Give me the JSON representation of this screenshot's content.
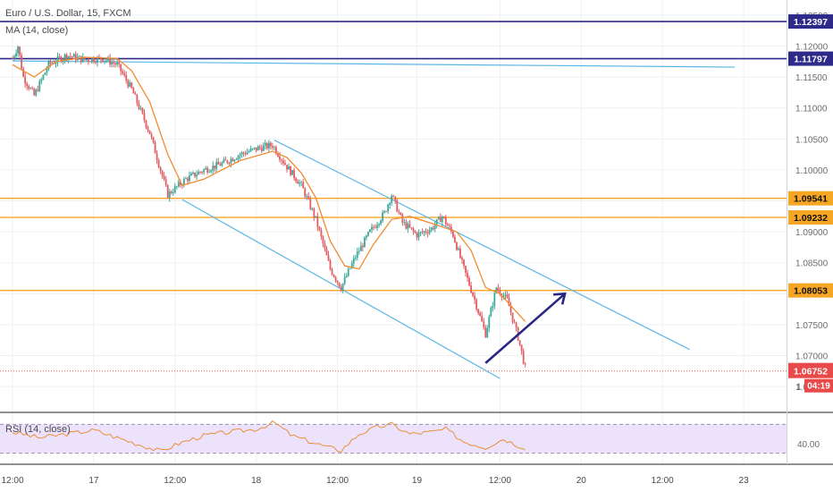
{
  "header": {
    "symbol_title": "Euro / U.S. Dollar, 15, FXCM",
    "ma_legend": "MA (14, close)",
    "rsi_legend": "RSI (14, close)"
  },
  "colors": {
    "candle_up": "#3aa89a",
    "candle_down": "#e05d63",
    "ma": "#f28b30",
    "channel": "#5bb6e3",
    "orange_level": "#f5a623",
    "navy_level": "#2d2a8a",
    "arrow": "#2a2785",
    "rsi_line": "#e8903a",
    "rsi_band": "#ede2fb",
    "last_price": "#e84a4a"
  },
  "chart_data": [
    {
      "type": "candlestick",
      "title": "Euro / U.S. Dollar, 15, FXCM",
      "indicator": "MA (14, close)",
      "ylim": [
        1.0645,
        1.1262
      ],
      "y_ticks": [
        "1.12500",
        "1.12000",
        "1.11500",
        "1.11000",
        "1.10500",
        "1.10000",
        "1.09500",
        "1.09000",
        "1.08500",
        "1.08000",
        "1.07500",
        "1.07000",
        "1.06500"
      ],
      "x_ticks": [
        "12:00",
        "17",
        "12:00",
        "18",
        "12:00",
        "19",
        "12:00",
        "20",
        "12:00",
        "23"
      ],
      "price_path": [
        {
          "t": 0,
          "p": 1.118
        },
        {
          "t": 3,
          "p": 1.12
        },
        {
          "t": 6,
          "p": 1.115
        },
        {
          "t": 12,
          "p": 1.112
        },
        {
          "t": 20,
          "p": 1.117
        },
        {
          "t": 30,
          "p": 1.1185
        },
        {
          "t": 40,
          "p": 1.1178
        },
        {
          "t": 50,
          "p": 1.118
        },
        {
          "t": 58,
          "p": 1.117
        },
        {
          "t": 66,
          "p": 1.113
        },
        {
          "t": 76,
          "p": 1.106
        },
        {
          "t": 86,
          "p": 1.096
        },
        {
          "t": 96,
          "p": 1.0985
        },
        {
          "t": 106,
          "p": 1.1
        },
        {
          "t": 116,
          "p": 1.101
        },
        {
          "t": 126,
          "p": 1.1025
        },
        {
          "t": 136,
          "p": 1.1035
        },
        {
          "t": 144,
          "p": 1.104
        },
        {
          "t": 152,
          "p": 1.1005
        },
        {
          "t": 160,
          "p": 1.0975
        },
        {
          "t": 168,
          "p": 1.092
        },
        {
          "t": 176,
          "p": 1.084
        },
        {
          "t": 182,
          "p": 1.081
        },
        {
          "t": 190,
          "p": 1.086
        },
        {
          "t": 198,
          "p": 1.09
        },
        {
          "t": 206,
          "p": 1.093
        },
        {
          "t": 210,
          "p": 1.096
        },
        {
          "t": 216,
          "p": 1.0915
        },
        {
          "t": 224,
          "p": 1.0895
        },
        {
          "t": 232,
          "p": 1.0905
        },
        {
          "t": 238,
          "p": 1.0925
        },
        {
          "t": 244,
          "p": 1.0895
        },
        {
          "t": 250,
          "p": 1.084
        },
        {
          "t": 256,
          "p": 1.079
        },
        {
          "t": 262,
          "p": 1.0735
        },
        {
          "t": 268,
          "p": 1.081
        },
        {
          "t": 274,
          "p": 1.079
        },
        {
          "t": 280,
          "p": 1.073
        },
        {
          "t": 284,
          "p": 1.068
        }
      ],
      "ma_path": [
        {
          "t": 0,
          "p": 1.117
        },
        {
          "t": 12,
          "p": 1.115
        },
        {
          "t": 24,
          "p": 1.1175
        },
        {
          "t": 40,
          "p": 1.1182
        },
        {
          "t": 58,
          "p": 1.118
        },
        {
          "t": 66,
          "p": 1.116
        },
        {
          "t": 76,
          "p": 1.111
        },
        {
          "t": 86,
          "p": 1.1025
        },
        {
          "t": 94,
          "p": 1.0975
        },
        {
          "t": 106,
          "p": 1.0985
        },
        {
          "t": 126,
          "p": 1.1015
        },
        {
          "t": 144,
          "p": 1.103
        },
        {
          "t": 152,
          "p": 1.102
        },
        {
          "t": 160,
          "p": 1.0995
        },
        {
          "t": 168,
          "p": 1.0955
        },
        {
          "t": 176,
          "p": 1.0885
        },
        {
          "t": 184,
          "p": 1.0845
        },
        {
          "t": 192,
          "p": 1.084
        },
        {
          "t": 200,
          "p": 1.088
        },
        {
          "t": 210,
          "p": 1.092
        },
        {
          "t": 220,
          "p": 1.0925
        },
        {
          "t": 236,
          "p": 1.091
        },
        {
          "t": 246,
          "p": 1.09
        },
        {
          "t": 254,
          "p": 1.087
        },
        {
          "t": 262,
          "p": 1.081
        },
        {
          "t": 270,
          "p": 1.08
        },
        {
          "t": 284,
          "p": 1.0755
        }
      ],
      "horizontal_levels": [
        {
          "value": 1.12397,
          "label": "1.12397",
          "kind": "navy"
        },
        {
          "value": 1.11797,
          "label": "1.11797",
          "kind": "navy"
        },
        {
          "value": 1.09541,
          "label": "1.09541",
          "kind": "orange"
        },
        {
          "value": 1.09232,
          "label": "1.09232",
          "kind": "orange"
        },
        {
          "value": 1.08053,
          "label": "1.08053",
          "kind": "orange"
        }
      ],
      "trend_lines": [
        {
          "kind": "channel-upper",
          "from": {
            "t": 145,
            "p": 1.1048
          },
          "to": {
            "t": 375,
            "p": 1.071
          }
        },
        {
          "kind": "channel-lower",
          "from": {
            "t": 94,
            "p": 1.0952
          },
          "to": {
            "t": 270,
            "p": 1.0663
          }
        },
        {
          "kind": "horizontal-ish",
          "from": {
            "t": 0,
            "p": 1.1176
          },
          "to": {
            "t": 400,
            "p": 1.1166
          }
        }
      ],
      "projection_arrow": {
        "from": {
          "t": 262,
          "p": 1.0688
        },
        "to": {
          "t": 306,
          "p": 1.08
        }
      },
      "last_price": {
        "value": 1.06752,
        "label": "1.06752",
        "countdown": "04:19"
      },
      "partial_tick_label": "1"
    },
    {
      "type": "line",
      "title": "RSI (14, close)",
      "ylim": [
        25,
        65
      ],
      "y_ticks": [
        "40.00"
      ],
      "band": [
        30,
        60
      ],
      "rsi_path": [
        {
          "t": 0,
          "v": 52
        },
        {
          "t": 15,
          "v": 46
        },
        {
          "t": 30,
          "v": 50
        },
        {
          "t": 45,
          "v": 54
        },
        {
          "t": 60,
          "v": 45
        },
        {
          "t": 72,
          "v": 38
        },
        {
          "t": 82,
          "v": 32
        },
        {
          "t": 92,
          "v": 40
        },
        {
          "t": 105,
          "v": 48
        },
        {
          "t": 120,
          "v": 52
        },
        {
          "t": 135,
          "v": 55
        },
        {
          "t": 145,
          "v": 62
        },
        {
          "t": 155,
          "v": 48
        },
        {
          "t": 165,
          "v": 42
        },
        {
          "t": 175,
          "v": 36
        },
        {
          "t": 182,
          "v": 33
        },
        {
          "t": 192,
          "v": 50
        },
        {
          "t": 202,
          "v": 57
        },
        {
          "t": 210,
          "v": 60
        },
        {
          "t": 220,
          "v": 50
        },
        {
          "t": 232,
          "v": 52
        },
        {
          "t": 240,
          "v": 55
        },
        {
          "t": 250,
          "v": 42
        },
        {
          "t": 262,
          "v": 36
        },
        {
          "t": 272,
          "v": 45
        },
        {
          "t": 280,
          "v": 38
        },
        {
          "t": 284,
          "v": 36
        }
      ]
    }
  ]
}
